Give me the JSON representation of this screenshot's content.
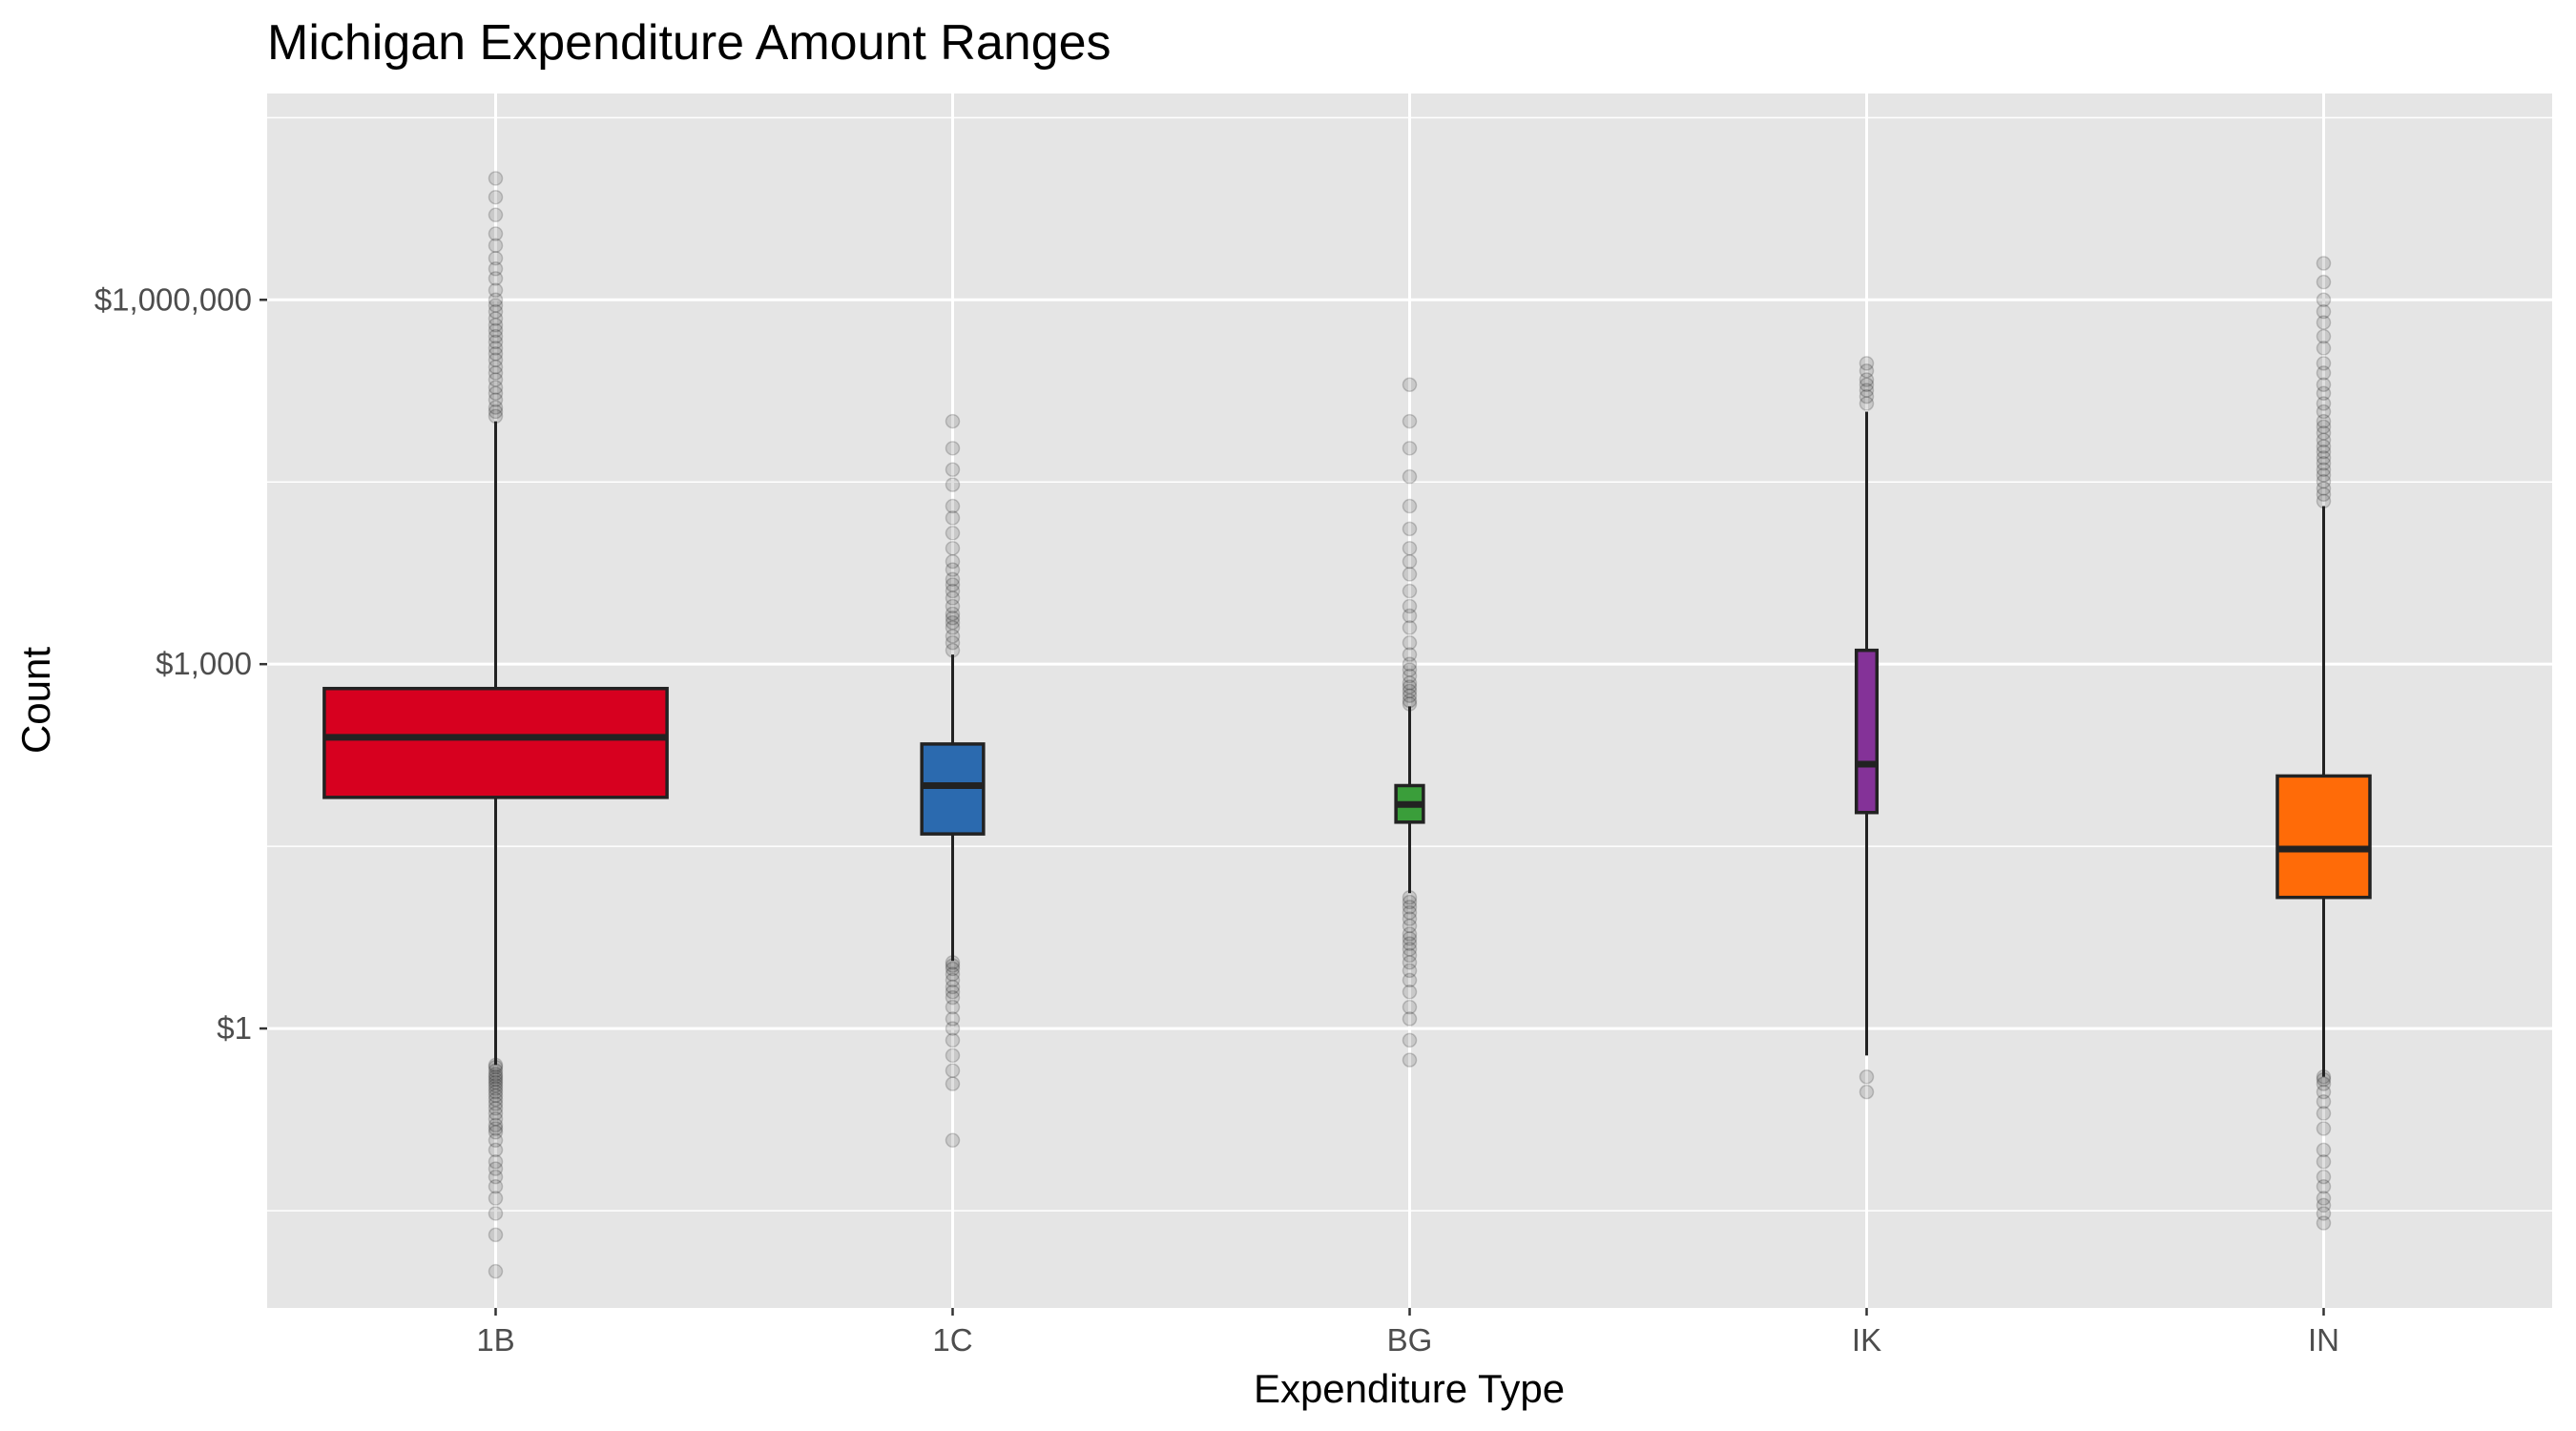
{
  "chart_data": {
    "type": "box",
    "title": "Michigan Expenditure Amount Ranges",
    "xlabel": "Expenditure Type",
    "ylabel": "Count",
    "y_scale": "log10",
    "ylim": [
      0.005,
      50000000
    ],
    "y_ticks": [
      {
        "value": 1,
        "label": "$1"
      },
      {
        "value": 1000,
        "label": "$1,000"
      },
      {
        "value": 1000000,
        "label": "$1,000,000"
      }
    ],
    "y_minor_ticks": [
      0.0316,
      31.6,
      31600,
      31600000
    ],
    "categories": [
      "1B",
      "1C",
      "BG",
      "IK",
      "IN"
    ],
    "colors": {
      "panel_background": "#e5e5e5",
      "grid": "#ffffff",
      "box_outline": "#222222",
      "outlier": "#000000"
    },
    "boxes": [
      {
        "category": "1B",
        "color": "#d7001f",
        "width_rel": 1.0,
        "q1": 80,
        "median": 250,
        "q3": 630,
        "whisker_low": 0.5,
        "whisker_high": 100000,
        "outliers": [
          0.5,
          0.48,
          0.45,
          0.42,
          0.4,
          0.38,
          0.36,
          0.34,
          0.32,
          0.3,
          0.28,
          0.26,
          0.24,
          0.22,
          0.2,
          0.18,
          0.16,
          0.15,
          0.14,
          0.12,
          0.1,
          0.08,
          0.07,
          0.06,
          0.05,
          0.04,
          0.03,
          0.02,
          0.01,
          110000,
          120000,
          130000,
          150000,
          170000,
          190000,
          220000,
          250000,
          280000,
          320000,
          360000,
          400000,
          450000,
          500000,
          560000,
          620000,
          700000,
          800000,
          900000,
          1000000,
          1200000,
          1500000,
          1800000,
          2200000,
          2800000,
          3500000,
          5000000,
          7000000,
          10000000
        ]
      },
      {
        "category": "1C",
        "color": "#2b6aaf",
        "width_rel": 0.18,
        "q1": 40,
        "median": 100,
        "q3": 220,
        "whisker_low": 3.6,
        "whisker_high": 1200,
        "outliers": [
          3.5,
          3.3,
          3.1,
          2.8,
          2.5,
          2.2,
          2,
          1.8,
          1.5,
          1.2,
          1,
          0.8,
          0.6,
          0.45,
          0.35,
          0.12,
          1300,
          1500,
          1700,
          2000,
          2200,
          2400,
          2600,
          3000,
          3500,
          4000,
          4500,
          5000,
          6000,
          7000,
          9000,
          12000,
          16000,
          20000,
          30000,
          40000,
          60000,
          100000
        ]
      },
      {
        "category": "BG",
        "color": "#3a9e3a",
        "width_rel": 0.08,
        "q1": 50,
        "median": 70,
        "q3": 100,
        "whisker_low": 13,
        "whisker_high": 450,
        "outliers": [
          12,
          11,
          10,
          9,
          8,
          7,
          6,
          5.5,
          5,
          4.5,
          4,
          3.5,
          3,
          2.5,
          2,
          1.5,
          1.2,
          0.8,
          0.55,
          470,
          500,
          550,
          600,
          650,
          700,
          800,
          900,
          1000,
          1200,
          1500,
          2000,
          2500,
          3000,
          4000,
          5500,
          7000,
          9000,
          13000,
          20000,
          35000,
          60000,
          100000,
          200000
        ]
      },
      {
        "category": "IK",
        "color": "#843298",
        "width_rel": 0.06,
        "q1": 60,
        "median": 150,
        "q3": 1300,
        "whisker_low": 0.6,
        "whisker_high": 120000,
        "outliers": [
          0.4,
          0.3,
          140000,
          160000,
          180000,
          200000,
          220000,
          260000,
          300000
        ]
      },
      {
        "category": "IN",
        "color": "#ff6b08",
        "width_rel": 0.27,
        "q1": 12,
        "median": 30,
        "q3": 120,
        "whisker_low": 0.4,
        "whisker_high": 20000,
        "outliers": [
          0.4,
          0.38,
          0.35,
          0.3,
          0.25,
          0.2,
          0.15,
          0.1,
          0.08,
          0.06,
          0.05,
          0.04,
          0.035,
          0.03,
          0.025,
          22000,
          25000,
          28000,
          32000,
          36000,
          40000,
          45000,
          50000,
          56000,
          62000,
          70000,
          80000,
          90000,
          100000,
          120000,
          140000,
          170000,
          200000,
          250000,
          300000,
          400000,
          500000,
          650000,
          800000,
          1000000,
          1400000,
          2000000
        ]
      }
    ]
  }
}
